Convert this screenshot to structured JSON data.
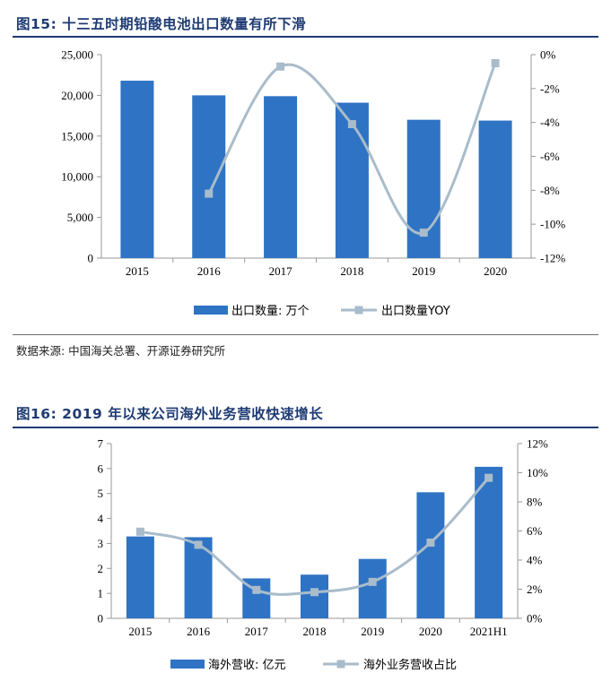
{
  "fig15": {
    "title": "图15:  十三五时期铅酸电池出口数量有所下滑",
    "source": "数据来源:  中国海关总署、开源证券研究所"
  },
  "fig16": {
    "title": "图16:  2019 年以来公司海外业务营收快速增长"
  },
  "chart_data": [
    {
      "type": "bar",
      "categories": [
        "2015",
        "2016",
        "2017",
        "2018",
        "2019",
        "2020"
      ],
      "series": [
        {
          "name": "出口数量:  万个",
          "type": "bar",
          "axis": "left",
          "values": [
            21800,
            20000,
            19900,
            19100,
            17000,
            16900
          ]
        },
        {
          "name": "出口数量YOY",
          "type": "line",
          "axis": "right",
          "values": [
            null,
            -8.2,
            -0.7,
            -4.1,
            -10.5,
            -0.5
          ]
        }
      ],
      "yticks_left": [
        "0",
        "5,000",
        "10,000",
        "15,000",
        "20,000",
        "25,000"
      ],
      "yticks_right": [
        "-12%",
        "-10%",
        "-8%",
        "-6%",
        "-4%",
        "-2%",
        "0%"
      ],
      "ylim_left": [
        0,
        25000
      ],
      "ylim_right": [
        -12,
        0
      ],
      "colors": {
        "bar": "#2f73c4",
        "line": "#a9bccb"
      },
      "legend_position": "bottom"
    },
    {
      "type": "bar",
      "categories": [
        "2015",
        "2016",
        "2017",
        "2018",
        "2019",
        "2020",
        "2021H1"
      ],
      "series": [
        {
          "name": "海外营收:  亿元",
          "type": "bar",
          "axis": "left",
          "values": [
            3.28,
            3.25,
            1.6,
            1.75,
            2.38,
            5.05,
            6.07
          ]
        },
        {
          "name": "海外业务营收占比",
          "type": "line",
          "axis": "right",
          "values": [
            5.95,
            5.05,
            1.95,
            1.8,
            2.5,
            5.2,
            9.65
          ]
        }
      ],
      "yticks_left": [
        "0",
        "1",
        "2",
        "3",
        "4",
        "5",
        "6",
        "7"
      ],
      "yticks_right": [
        "0%",
        "2%",
        "4%",
        "6%",
        "8%",
        "10%",
        "12%"
      ],
      "ylim_left": [
        0,
        7
      ],
      "ylim_right": [
        0,
        12
      ],
      "colors": {
        "bar": "#2f73c4",
        "line": "#a9bccb"
      },
      "legend_position": "bottom"
    }
  ]
}
